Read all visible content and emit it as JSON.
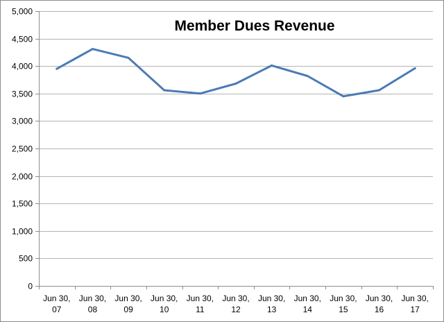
{
  "chart_data": {
    "type": "line",
    "title": "Member Dues Revenue",
    "xlabel": "",
    "ylabel": "",
    "categories": [
      [
        "Jun 30,",
        "07"
      ],
      [
        "Jun 30,",
        "08"
      ],
      [
        "Jun 30,",
        "09"
      ],
      [
        "Jun 30,",
        "10"
      ],
      [
        "Jun 30,",
        "11"
      ],
      [
        "Jun 30,",
        "12"
      ],
      [
        "Jun 30,",
        "13"
      ],
      [
        "Jun 30,",
        "14"
      ],
      [
        "Jun 30,",
        "15"
      ],
      [
        "Jun 30,",
        "16"
      ],
      [
        "Jun 30,",
        "17"
      ]
    ],
    "series": [
      {
        "values": [
          3950,
          4310,
          4150,
          3560,
          3500,
          3680,
          4010,
          3820,
          3450,
          3560,
          3960
        ],
        "color": "#4a7ab5"
      }
    ],
    "ylim": [
      0,
      5000
    ],
    "yticks": [
      0,
      500,
      1000,
      1500,
      2000,
      2500,
      3000,
      3500,
      4000,
      4500,
      5000
    ],
    "ytick_labels": [
      "0",
      "500",
      "1,000",
      "1,500",
      "2,000",
      "2,500",
      "3,000",
      "3,500",
      "4,000",
      "4,500",
      "5,000"
    ],
    "grid": true,
    "legend": "none",
    "colors": {
      "gridline": "#b3b3b3",
      "axis": "#8c8c8c",
      "border": "#8c8c8c"
    }
  }
}
